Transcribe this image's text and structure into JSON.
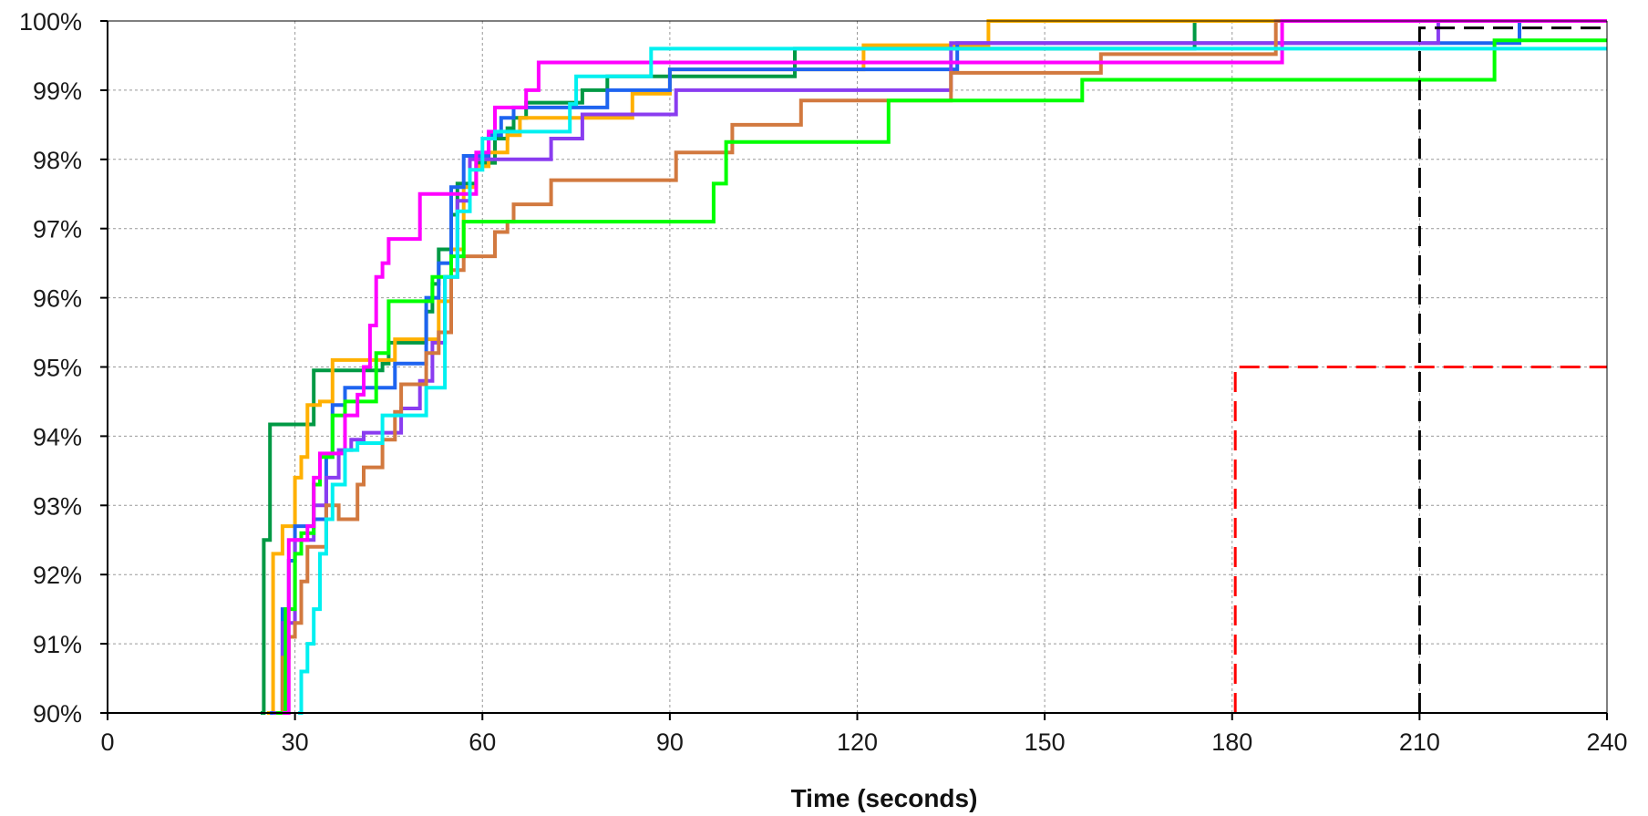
{
  "chart_data": {
    "type": "line",
    "title": "",
    "xlabel": "Time (seconds)",
    "ylabel": "",
    "xlim": [
      0,
      240
    ],
    "ylim": [
      90,
      100
    ],
    "x_ticks": [
      0,
      30,
      60,
      90,
      120,
      150,
      180,
      210,
      240
    ],
    "y_ticks": [
      90,
      91,
      92,
      93,
      94,
      95,
      96,
      97,
      98,
      99,
      100
    ],
    "x_tick_labels": [
      "0",
      "30",
      "60",
      "90",
      "120",
      "150",
      "180",
      "210",
      "240"
    ],
    "y_tick_labels": [
      "90%",
      "91%",
      "92%",
      "93%",
      "94%",
      "95%",
      "96%",
      "97%",
      "98%",
      "99%",
      "100%"
    ],
    "grid": true,
    "grid_color": "#999999",
    "legend": "none",
    "series": [
      {
        "color": "#009944",
        "step": true,
        "points": [
          [
            24.5,
            90
          ],
          [
            25,
            92.5
          ],
          [
            26,
            94.17
          ],
          [
            32,
            94.17
          ],
          [
            33,
            94.95
          ],
          [
            43,
            94.95
          ],
          [
            44,
            95.05
          ],
          [
            45,
            95.35
          ],
          [
            50,
            95.35
          ],
          [
            51,
            95.8
          ],
          [
            52,
            96.2
          ],
          [
            53,
            96.7
          ],
          [
            55,
            97.2
          ],
          [
            56,
            97.65
          ],
          [
            58,
            97.65
          ],
          [
            59,
            97.95
          ],
          [
            61,
            97.95
          ],
          [
            62,
            98.3
          ],
          [
            64,
            98.45
          ],
          [
            65,
            98.6
          ],
          [
            67,
            98.82
          ],
          [
            75,
            98.82
          ],
          [
            76,
            99.0
          ],
          [
            80,
            99.2
          ],
          [
            109,
            99.2
          ],
          [
            110,
            99.6
          ],
          [
            173,
            99.6
          ],
          [
            174,
            100
          ],
          [
            240,
            100
          ]
        ]
      },
      {
        "color": "#ffb000",
        "step": true,
        "points": [
          [
            25.5,
            90
          ],
          [
            26.5,
            92.3
          ],
          [
            28,
            92.7
          ],
          [
            30,
            93.4
          ],
          [
            31,
            93.7
          ],
          [
            32,
            94.45
          ],
          [
            34,
            94.5
          ],
          [
            36,
            95.1
          ],
          [
            45,
            95.1
          ],
          [
            46,
            95.4
          ],
          [
            52,
            95.4
          ],
          [
            53,
            95.95
          ],
          [
            55,
            96.7
          ],
          [
            57,
            97.6
          ],
          [
            59,
            97.9
          ],
          [
            61,
            98.1
          ],
          [
            64,
            98.35
          ],
          [
            66,
            98.6
          ],
          [
            70,
            98.6
          ],
          [
            82,
            98.6
          ],
          [
            84,
            98.95
          ],
          [
            89,
            98.95
          ],
          [
            90,
            99.3
          ],
          [
            120,
            99.3
          ],
          [
            121,
            99.65
          ],
          [
            140,
            99.65
          ],
          [
            141,
            100
          ],
          [
            240,
            100
          ]
        ]
      },
      {
        "color": "#1e64f0",
        "step": true,
        "points": [
          [
            26,
            90
          ],
          [
            28,
            91.5
          ],
          [
            29,
            92.2
          ],
          [
            30,
            92.7
          ],
          [
            33,
            92.8
          ],
          [
            35,
            93.7
          ],
          [
            36,
            94.45
          ],
          [
            38,
            94.7
          ],
          [
            44,
            94.7
          ],
          [
            46,
            95.05
          ],
          [
            50,
            95.05
          ],
          [
            51,
            96.0
          ],
          [
            53,
            96.5
          ],
          [
            55,
            97.6
          ],
          [
            57,
            98.05
          ],
          [
            59,
            98.05
          ],
          [
            61,
            98.35
          ],
          [
            63,
            98.6
          ],
          [
            65,
            98.75
          ],
          [
            78,
            98.75
          ],
          [
            80,
            99.0
          ],
          [
            83,
            99.0
          ],
          [
            90,
            99.3
          ],
          [
            92,
            99.3
          ],
          [
            135,
            99.3
          ],
          [
            136,
            99.68
          ],
          [
            224,
            99.68
          ],
          [
            226,
            100
          ],
          [
            240,
            100
          ]
        ]
      },
      {
        "color": "#8a3cf0",
        "step": true,
        "points": [
          [
            26.5,
            90
          ],
          [
            28,
            91.3
          ],
          [
            30,
            92.5
          ],
          [
            33,
            93.0
          ],
          [
            35,
            93.4
          ],
          [
            37,
            93.8
          ],
          [
            39,
            93.95
          ],
          [
            41,
            94.05
          ],
          [
            46,
            94.05
          ],
          [
            47,
            94.4
          ],
          [
            49,
            94.4
          ],
          [
            50,
            94.8
          ],
          [
            52,
            95.35
          ],
          [
            54,
            96.3
          ],
          [
            56,
            97.4
          ],
          [
            58,
            98.0
          ],
          [
            62,
            98.0
          ],
          [
            65,
            98.0
          ],
          [
            69,
            98.0
          ],
          [
            71,
            98.3
          ],
          [
            75,
            98.3
          ],
          [
            76,
            98.65
          ],
          [
            89,
            98.65
          ],
          [
            91,
            99.0
          ],
          [
            132,
            99.0
          ],
          [
            135,
            99.68
          ],
          [
            211,
            99.68
          ],
          [
            213,
            100
          ],
          [
            240,
            100
          ]
        ]
      },
      {
        "color": "#d2793f",
        "step": true,
        "points": [
          [
            27,
            90
          ],
          [
            28,
            90.8
          ],
          [
            29,
            91.1
          ],
          [
            30,
            91.3
          ],
          [
            31,
            91.9
          ],
          [
            32,
            92.4
          ],
          [
            34,
            92.4
          ],
          [
            35,
            93.0
          ],
          [
            37,
            92.8
          ],
          [
            39,
            92.8
          ],
          [
            40,
            93.3
          ],
          [
            41,
            93.55
          ],
          [
            43,
            93.55
          ],
          [
            44,
            93.95
          ],
          [
            46,
            94.35
          ],
          [
            47,
            94.75
          ],
          [
            49,
            94.75
          ],
          [
            51,
            95.2
          ],
          [
            53,
            95.5
          ],
          [
            55,
            96.4
          ],
          [
            57,
            96.6
          ],
          [
            61,
            96.6
          ],
          [
            62,
            96.95
          ],
          [
            64,
            97.1
          ],
          [
            65,
            97.35
          ],
          [
            70,
            97.35
          ],
          [
            71,
            97.7
          ],
          [
            90,
            97.7
          ],
          [
            91,
            98.1
          ],
          [
            98,
            98.1
          ],
          [
            100,
            98.5
          ],
          [
            109,
            98.5
          ],
          [
            111,
            98.85
          ],
          [
            133,
            98.85
          ],
          [
            135,
            99.25
          ],
          [
            158,
            99.25
          ],
          [
            159,
            99.52
          ],
          [
            185,
            99.52
          ],
          [
            187,
            100
          ],
          [
            240,
            100
          ]
        ]
      },
      {
        "color": "#00ff00",
        "step": true,
        "points": [
          [
            27,
            90
          ],
          [
            28.5,
            91.5
          ],
          [
            30,
            92.3
          ],
          [
            31,
            92.6
          ],
          [
            33,
            93.3
          ],
          [
            34,
            93.7
          ],
          [
            36,
            94.3
          ],
          [
            38,
            94.5
          ],
          [
            41,
            94.5
          ],
          [
            43,
            95.2
          ],
          [
            45,
            95.95
          ],
          [
            49,
            95.95
          ],
          [
            51,
            95.95
          ],
          [
            52,
            96.3
          ],
          [
            55,
            96.6
          ],
          [
            57,
            97.1
          ],
          [
            59,
            97.1
          ],
          [
            96,
            97.1
          ],
          [
            97,
            97.65
          ],
          [
            99,
            98.25
          ],
          [
            124,
            98.25
          ],
          [
            125,
            98.85
          ],
          [
            155,
            98.85
          ],
          [
            156,
            99.15
          ],
          [
            220,
            99.15
          ],
          [
            222,
            99.72
          ],
          [
            240,
            99.72
          ]
        ]
      },
      {
        "color": "#ff00ff",
        "step": true,
        "points": [
          [
            28,
            90
          ],
          [
            29,
            92.5
          ],
          [
            31,
            92.5
          ],
          [
            32,
            92.7
          ],
          [
            33,
            93.4
          ],
          [
            34,
            93.75
          ],
          [
            37,
            93.75
          ],
          [
            38,
            94.3
          ],
          [
            40,
            94.6
          ],
          [
            41,
            95.0
          ],
          [
            42,
            95.6
          ],
          [
            43,
            96.3
          ],
          [
            44,
            96.5
          ],
          [
            45,
            96.85
          ],
          [
            48,
            96.85
          ],
          [
            50,
            97.5
          ],
          [
            56,
            97.5
          ],
          [
            58,
            97.5
          ],
          [
            59,
            98.1
          ],
          [
            61,
            98.4
          ],
          [
            62,
            98.75
          ],
          [
            66,
            98.75
          ],
          [
            67,
            99.0
          ],
          [
            69,
            99.4
          ],
          [
            187,
            99.4
          ],
          [
            188,
            100
          ],
          [
            240,
            100
          ]
        ]
      },
      {
        "color": "#00f0f0",
        "step": true,
        "points": [
          [
            30.5,
            90
          ],
          [
            31,
            90.6
          ],
          [
            32,
            91.0
          ],
          [
            33,
            91.5
          ],
          [
            34,
            92.3
          ],
          [
            35,
            92.8
          ],
          [
            36,
            93.3
          ],
          [
            38,
            93.8
          ],
          [
            40,
            93.9
          ],
          [
            43,
            93.9
          ],
          [
            44,
            94.3
          ],
          [
            46,
            94.3
          ],
          [
            50,
            94.3
          ],
          [
            51,
            94.7
          ],
          [
            52,
            94.7
          ],
          [
            54,
            96.3
          ],
          [
            56,
            97.25
          ],
          [
            58,
            97.85
          ],
          [
            60,
            98.3
          ],
          [
            62,
            98.4
          ],
          [
            67,
            98.4
          ],
          [
            72,
            98.4
          ],
          [
            74,
            98.8
          ],
          [
            75,
            99.2
          ],
          [
            85,
            99.2
          ],
          [
            87,
            99.6
          ],
          [
            240,
            99.6
          ]
        ]
      }
    ],
    "reference_lines": [
      {
        "color": "#ff0000",
        "dashed": true,
        "points": [
          [
            180.5,
            90
          ],
          [
            180.5,
            95
          ],
          [
            240,
            95
          ]
        ]
      },
      {
        "color": "#000000",
        "dashed": true,
        "points": [
          [
            210,
            90
          ],
          [
            210,
            99.9
          ],
          [
            240,
            99.9
          ]
        ]
      }
    ]
  }
}
